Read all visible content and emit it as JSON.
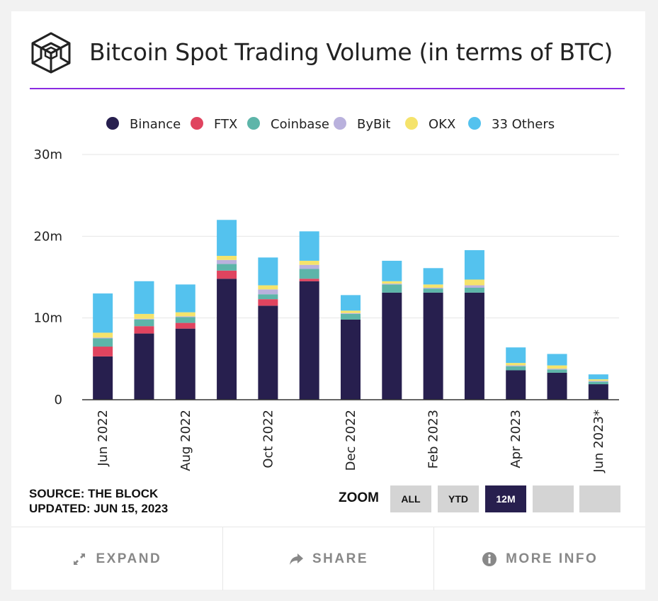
{
  "header": {
    "title": "Bitcoin Spot Trading Volume (in terms of BTC)"
  },
  "source": {
    "line1": "SOURCE: THE BLOCK",
    "line2": "UPDATED: JUN 15, 2023"
  },
  "zoom": {
    "label": "ZOOM",
    "buttons": [
      "ALL",
      "YTD",
      "12M",
      "",
      ""
    ],
    "active": "12M"
  },
  "footer": {
    "expand": "EXPAND",
    "share": "SHARE",
    "more_info": "MORE INFO"
  },
  "colors": {
    "Binance": "#271f4e",
    "FTX": "#e0445f",
    "Coinbase": "#5db5a9",
    "ByBit": "#b9b1dd",
    "OKX": "#f5e36b",
    "33 Others": "#54c2ee"
  },
  "chart_data": {
    "type": "bar",
    "stacked": true,
    "title": "Bitcoin Spot Trading Volume (in terms of BTC)",
    "categories": [
      "Jun 2022",
      "Jul 2022",
      "Aug 2022",
      "Sep 2022",
      "Oct 2022",
      "Nov 2022",
      "Dec 2022",
      "Jan 2023",
      "Feb 2023",
      "Mar 2023",
      "Apr 2023",
      "May 2023",
      "Jun 2023*"
    ],
    "tick_labels": [
      "Jun 2022",
      "",
      "Aug 2022",
      "",
      "Oct 2022",
      "",
      "Dec 2022",
      "",
      "Feb 2023",
      "",
      "Apr 2023",
      "",
      "Jun 2023*"
    ],
    "series": [
      {
        "name": "Binance",
        "values": [
          5.3,
          8.1,
          8.7,
          14.8,
          11.5,
          14.5,
          9.8,
          13.1,
          13.1,
          13.1,
          3.6,
          3.3,
          1.9
        ]
      },
      {
        "name": "FTX",
        "values": [
          1.2,
          0.9,
          0.7,
          1.0,
          0.8,
          0.3,
          0,
          0,
          0,
          0,
          0,
          0,
          0
        ]
      },
      {
        "name": "Coinbase",
        "values": [
          1.0,
          0.8,
          0.7,
          0.8,
          0.6,
          1.2,
          0.7,
          1.0,
          0.5,
          0.6,
          0.5,
          0.4,
          0.3
        ]
      },
      {
        "name": "ByBit",
        "values": [
          0.1,
          0.1,
          0.1,
          0.5,
          0.6,
          0.5,
          0.1,
          0.1,
          0.1,
          0.3,
          0.1,
          0.1,
          0.1
        ]
      },
      {
        "name": "OKX",
        "values": [
          0.6,
          0.6,
          0.5,
          0.5,
          0.5,
          0.5,
          0.3,
          0.3,
          0.4,
          0.7,
          0.3,
          0.4,
          0.2
        ]
      },
      {
        "name": "33 Others",
        "values": [
          4.8,
          4.0,
          3.4,
          4.4,
          3.4,
          3.6,
          1.9,
          2.5,
          2.0,
          3.6,
          1.9,
          1.4,
          0.6
        ]
      }
    ],
    "legend": [
      "Binance",
      "FTX",
      "Coinbase",
      "ByBit",
      "OKX",
      "33 Others"
    ],
    "y_ticks": [
      0,
      10,
      20,
      30
    ],
    "y_tick_labels": [
      "0",
      "10m",
      "20m",
      "30m"
    ],
    "ylim": [
      0,
      30
    ],
    "grid": true,
    "legend_position": "top-center"
  }
}
